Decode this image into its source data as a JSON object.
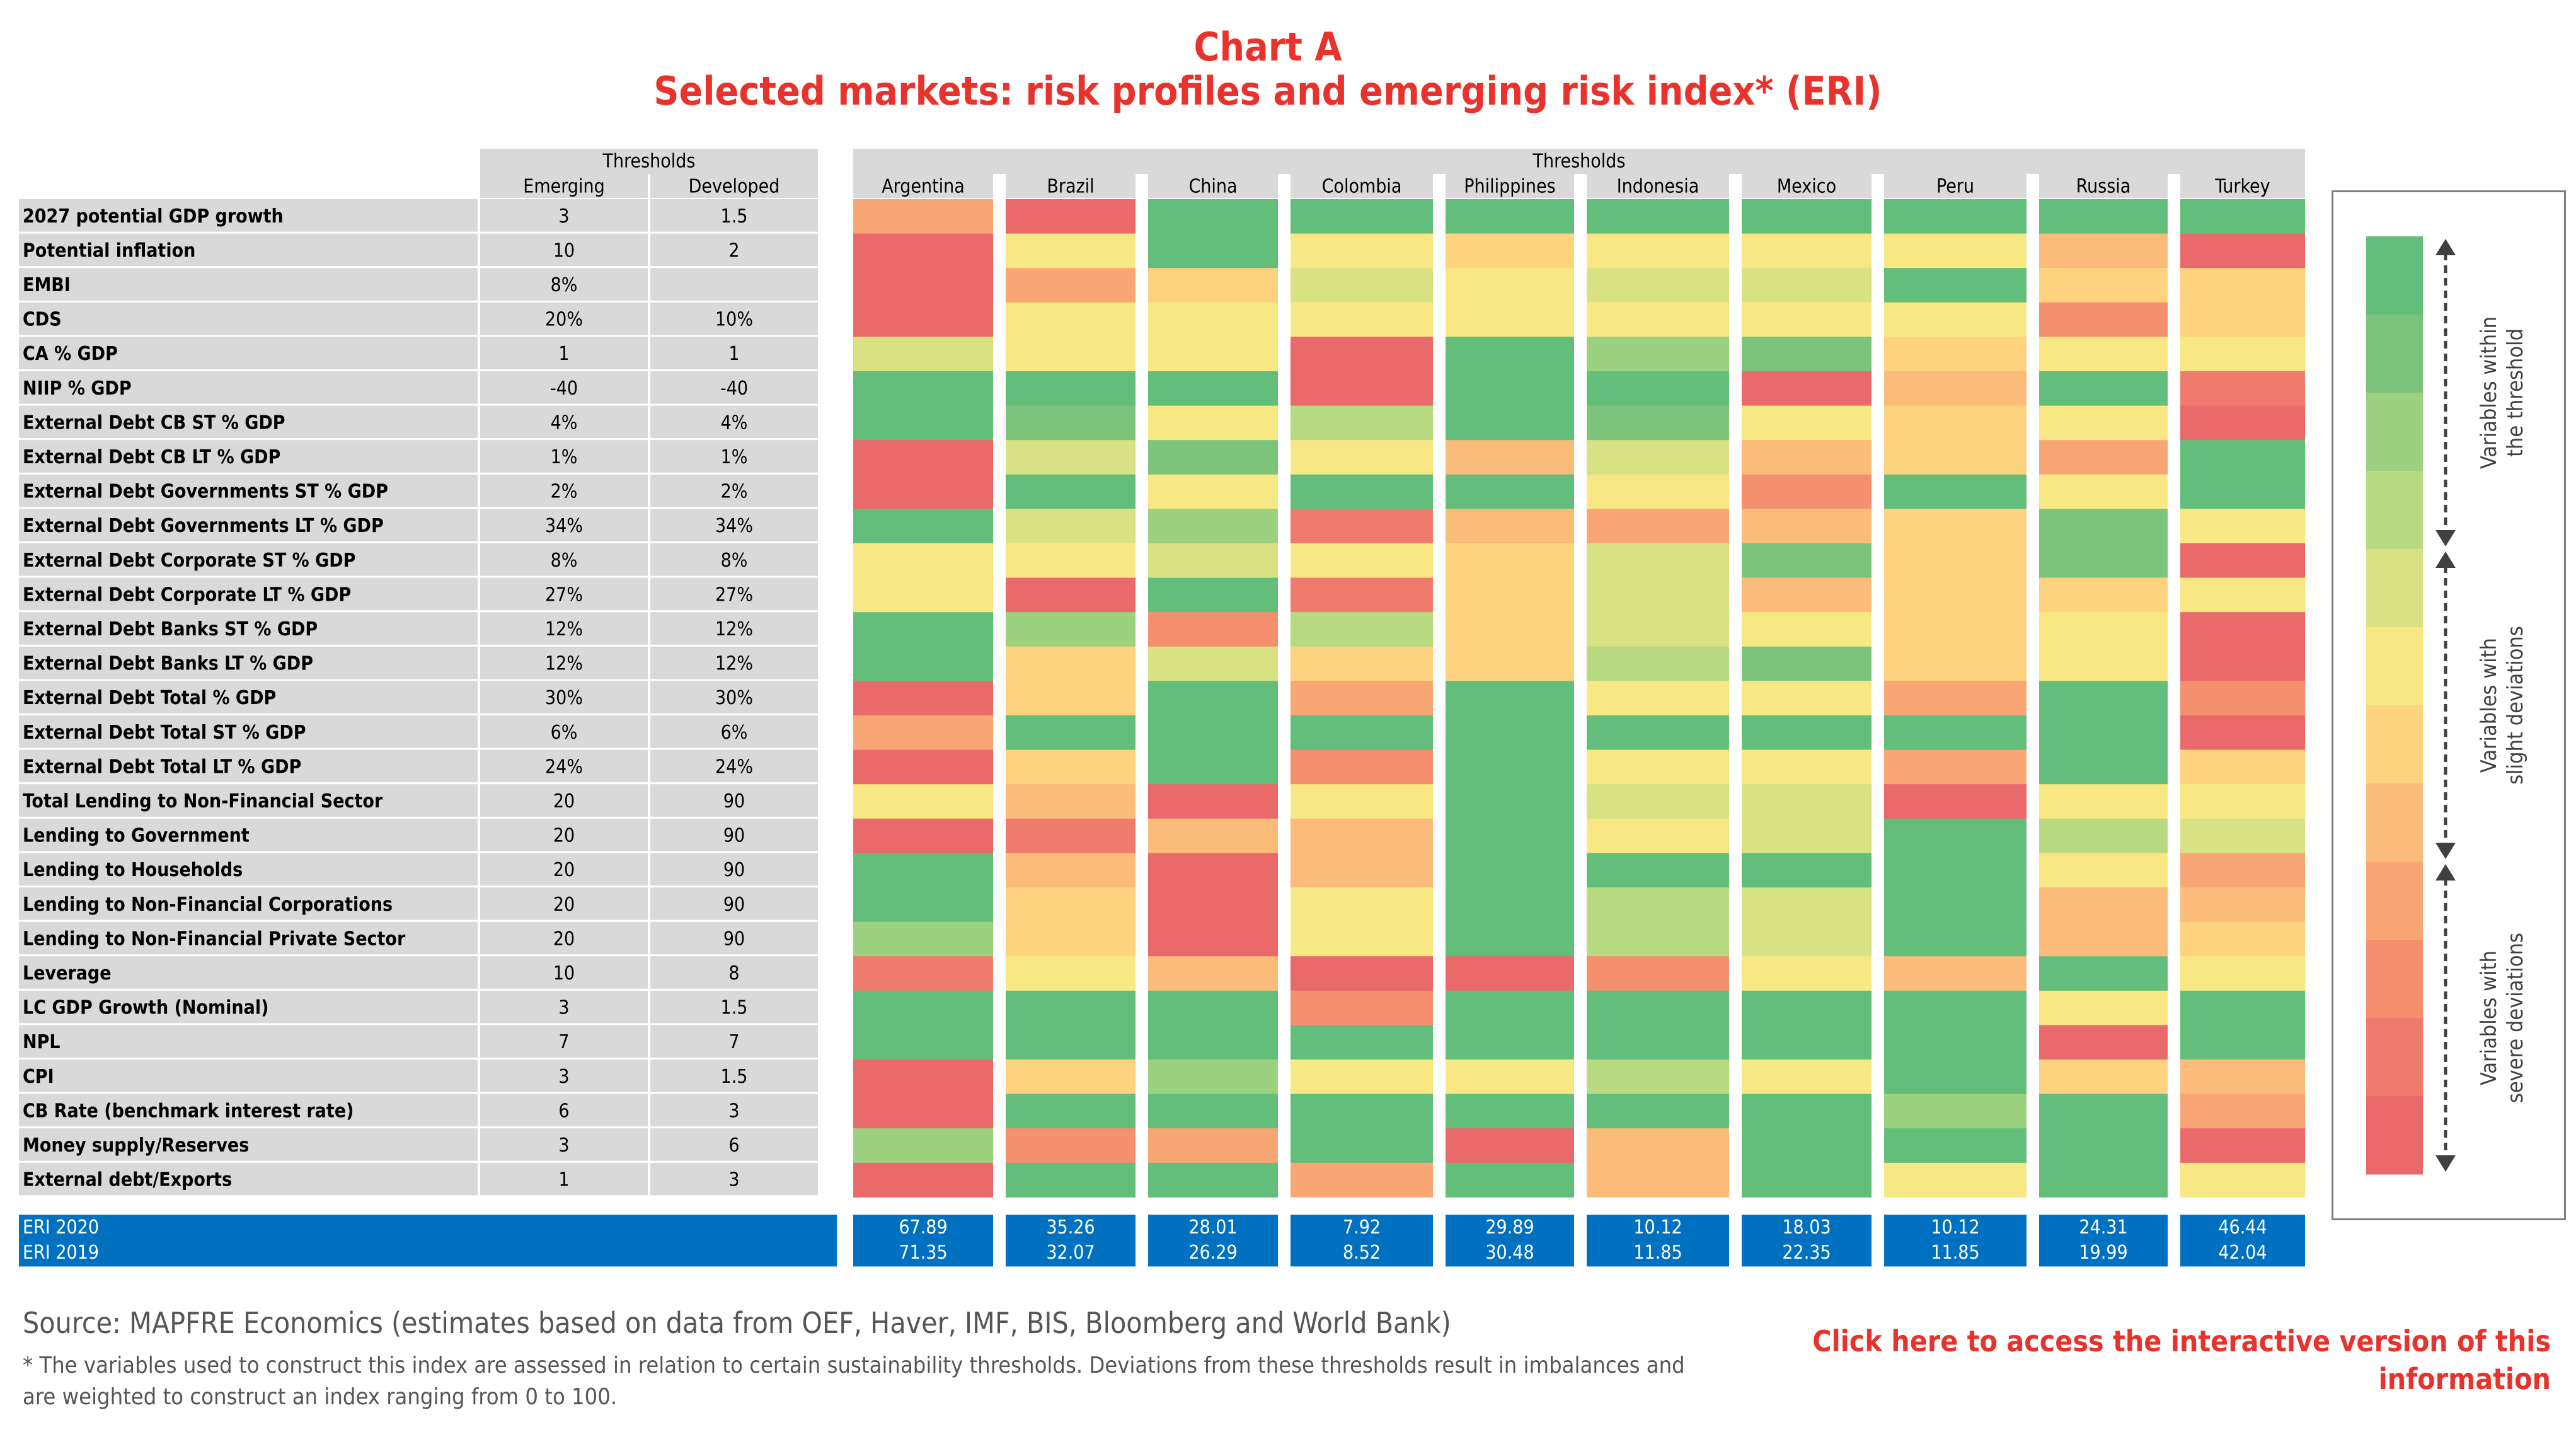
{
  "title": "Chart A",
  "subtitle": "Selected markets: risk profiles and emerging risk index* (ERI)",
  "source": "Source: MAPFRE Economics (estimates based on data from OEF, Haver, IMF, BIS, Bloomberg and World Bank)",
  "footnote": "* The variables used to construct this index are assessed in relation to certain sustainability thresholds. Deviations from these thresholds result in imbalances and are weighted to construct an index ranging from 0 to 100.",
  "link_text": "Click here to access the interactive version of this information",
  "colors": {
    "title_red": "#e8322b",
    "header_gray": "#d9d9d9",
    "eri_blue": "#0070c0",
    "scale": [
      "#63be7b",
      "#7cc47c",
      "#9cd17f",
      "#b8db81",
      "#d8e282",
      "#f8e883",
      "#fdd380",
      "#fbbc7b",
      "#f8a674",
      "#f4906d",
      "#ee7b6c",
      "#ea6a6b"
    ]
  },
  "legend": {
    "within": "Variables within the threshold",
    "slight": "Variables with slight deviations",
    "severe": "Variables with severe deviations"
  },
  "chart_data": {
    "type": "heatmap",
    "thresholds_header": "Thresholds",
    "threshold_columns": [
      "Emerging",
      "Developed"
    ],
    "countries_header": "Thresholds",
    "countries": [
      "Argentina",
      "Brazil",
      "China",
      "Colombia",
      "Philippines",
      "Indonesia",
      "Mexico",
      "Peru",
      "Russia",
      "Turkey"
    ],
    "value_scale": "0 = within threshold (green) … 11 = severe deviation (red)",
    "rows": [
      {
        "label": "2027 potential GDP growth",
        "emerging": "3",
        "developed": "1.5",
        "values": [
          8,
          11,
          0,
          0,
          0,
          0,
          0,
          0,
          0,
          0
        ]
      },
      {
        "label": "Potential inflation",
        "emerging": "10",
        "developed": "2",
        "values": [
          11,
          5,
          0,
          5,
          6,
          5,
          5,
          5,
          7,
          11
        ]
      },
      {
        "label": "EMBI",
        "emerging": "8%",
        "developed": "",
        "values": [
          11,
          8,
          6,
          4,
          5,
          4,
          4,
          0,
          6,
          6
        ]
      },
      {
        "label": "CDS",
        "emerging": "20%",
        "developed": "10%",
        "values": [
          11,
          5,
          5,
          5,
          5,
          5,
          5,
          5,
          9,
          6
        ]
      },
      {
        "label": "CA % GDP",
        "emerging": "1",
        "developed": "1",
        "values": [
          4,
          5,
          5,
          11,
          0,
          2,
          1,
          6,
          5,
          5
        ]
      },
      {
        "label": "NIIP % GDP",
        "emerging": "-40",
        "developed": "-40",
        "values": [
          0,
          0,
          0,
          11,
          0,
          0,
          11,
          7,
          0,
          10
        ]
      },
      {
        "label": "External Debt CB ST % GDP",
        "emerging": "4%",
        "developed": "4%",
        "values": [
          0,
          1,
          5,
          3,
          0,
          1,
          5,
          6,
          5,
          11
        ]
      },
      {
        "label": "External Debt CB LT % GDP",
        "emerging": "1%",
        "developed": "1%",
        "values": [
          11,
          4,
          1,
          5,
          7,
          4,
          7,
          6,
          8,
          0
        ]
      },
      {
        "label": "External Debt Governments ST % GDP",
        "emerging": "2%",
        "developed": "2%",
        "values": [
          11,
          0,
          5,
          0,
          0,
          5,
          9,
          0,
          5,
          0
        ]
      },
      {
        "label": "External Debt Governments LT % GDP",
        "emerging": "34%",
        "developed": "34%",
        "values": [
          0,
          4,
          2,
          10,
          7,
          8,
          7,
          6,
          1,
          5
        ]
      },
      {
        "label": "External Debt Corporate ST % GDP",
        "emerging": "8%",
        "developed": "8%",
        "values": [
          5,
          5,
          4,
          5,
          6,
          4,
          1,
          6,
          1,
          11
        ]
      },
      {
        "label": "External Debt Corporate LT % GDP",
        "emerging": "27%",
        "developed": "27%",
        "values": [
          5,
          11,
          0,
          10,
          6,
          4,
          7,
          6,
          6,
          5
        ]
      },
      {
        "label": "External Debt Banks ST % GDP",
        "emerging": "12%",
        "developed": "12%",
        "values": [
          0,
          2,
          9,
          3,
          6,
          4,
          5,
          6,
          5,
          11
        ]
      },
      {
        "label": "External Debt Banks LT % GDP",
        "emerging": "12%",
        "developed": "12%",
        "values": [
          0,
          6,
          4,
          6,
          6,
          3,
          1,
          6,
          5,
          11
        ]
      },
      {
        "label": "External Debt Total % GDP",
        "emerging": "30%",
        "developed": "30%",
        "values": [
          11,
          6,
          0,
          8,
          0,
          5,
          5,
          8,
          0,
          9
        ]
      },
      {
        "label": "External Debt Total ST % GDP",
        "emerging": "6%",
        "developed": "6%",
        "values": [
          8,
          0,
          0,
          0,
          0,
          0,
          0,
          0,
          0,
          11
        ]
      },
      {
        "label": "External Debt Total LT % GDP",
        "emerging": "24%",
        "developed": "24%",
        "values": [
          11,
          6,
          0,
          9,
          0,
          5,
          5,
          8,
          0,
          6
        ]
      },
      {
        "label": "Total Lending to Non-Financial Sector",
        "emerging": "20",
        "developed": "90",
        "values": [
          5,
          7,
          11,
          5,
          0,
          4,
          4,
          11,
          5,
          5
        ]
      },
      {
        "label": "Lending to Government",
        "emerging": "20",
        "developed": "90",
        "values": [
          11,
          10,
          7,
          7,
          0,
          5,
          4,
          0,
          3,
          4
        ]
      },
      {
        "label": "Lending to Households",
        "emerging": "20",
        "developed": "90",
        "values": [
          0,
          7,
          11,
          7,
          0,
          0,
          0,
          0,
          5,
          8
        ]
      },
      {
        "label": "Lending to Non-Financial Corporations",
        "emerging": "20",
        "developed": "90",
        "values": [
          0,
          6,
          11,
          5,
          0,
          3,
          4,
          0,
          7,
          7
        ]
      },
      {
        "label": "Lending to Non-Financial Private Sector",
        "emerging": "20",
        "developed": "90",
        "values": [
          2,
          6,
          11,
          5,
          0,
          3,
          4,
          0,
          7,
          6
        ]
      },
      {
        "label": "Leverage",
        "emerging": "10",
        "developed": "8",
        "values": [
          10,
          5,
          7,
          11,
          11,
          9,
          5,
          7,
          0,
          5
        ]
      },
      {
        "label": "LC GDP Growth (Nominal)",
        "emerging": "3",
        "developed": "1.5",
        "values": [
          0,
          0,
          0,
          9,
          0,
          0,
          0,
          0,
          5,
          0
        ]
      },
      {
        "label": "NPL",
        "emerging": "7",
        "developed": "7",
        "values": [
          0,
          0,
          0,
          0,
          0,
          0,
          0,
          0,
          11,
          0
        ]
      },
      {
        "label": "CPI",
        "emerging": "3",
        "developed": "1.5",
        "values": [
          11,
          6,
          2,
          5,
          5,
          3,
          5,
          0,
          6,
          7
        ]
      },
      {
        "label": "CB Rate (benchmark interest rate)",
        "emerging": "6",
        "developed": "3",
        "values": [
          11,
          0,
          0,
          0,
          0,
          0,
          0,
          2,
          0,
          8
        ]
      },
      {
        "label": "Money supply/Reserves",
        "emerging": "3",
        "developed": "6",
        "values": [
          2,
          9,
          8,
          0,
          11,
          7,
          0,
          0,
          0,
          11
        ]
      },
      {
        "label": "External debt/Exports",
        "emerging": "1",
        "developed": "3",
        "values": [
          11,
          0,
          0,
          8,
          0,
          7,
          0,
          5,
          0,
          5
        ]
      }
    ],
    "eri": [
      {
        "label": "ERI 2020",
        "values": [
          "67.89",
          "35.26",
          "28.01",
          "7.92",
          "29.89",
          "10.12",
          "18.03",
          "10.12",
          "24.31",
          "46.44"
        ]
      },
      {
        "label": "ERI 2019",
        "values": [
          "71.35",
          "32.07",
          "26.29",
          "8.52",
          "30.48",
          "11.85",
          "22.35",
          "11.85",
          "19.99",
          "42.04"
        ]
      }
    ]
  }
}
